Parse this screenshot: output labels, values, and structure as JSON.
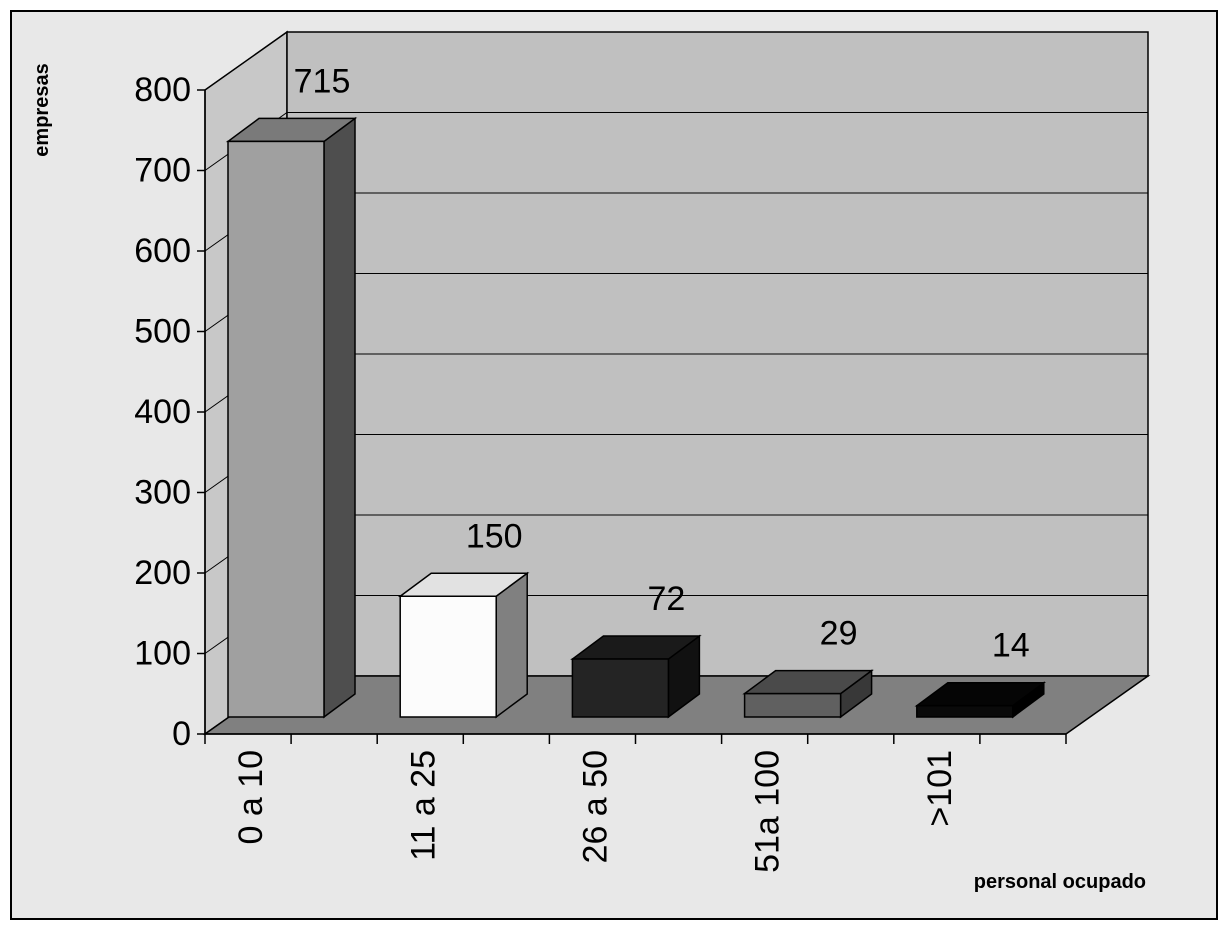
{
  "chart_data": {
    "type": "bar",
    "categories": [
      "0 a 10",
      "11 a 25",
      "26 a 50",
      "51a 100",
      ">101"
    ],
    "values": [
      715,
      150,
      72,
      29,
      14
    ],
    "data_labels": [
      "715",
      "150",
      "72",
      "29",
      "14"
    ],
    "ylabel": "empresas",
    "xlabel": "personal ocupado",
    "ylim": [
      0,
      800
    ],
    "yticks": [
      "0",
      "100",
      "200",
      "300",
      "400",
      "500",
      "600",
      "700",
      "800"
    ],
    "grid": true,
    "colors": {
      "background": "#e8e8e8",
      "back_wall": "#c0c0c0",
      "floor": "#808080",
      "bars": [
        {
          "front": "#a0a0a0",
          "top": "#7a7a7a",
          "side": "#4e4e4e"
        },
        {
          "front": "#fcfcfc",
          "top": "#e2e2e2",
          "side": "#808080"
        },
        {
          "front": "#242424",
          "top": "#1a1a1a",
          "side": "#111111"
        },
        {
          "front": "#606060",
          "top": "#4a4a4a",
          "side": "#383838"
        },
        {
          "front": "#0a0a0a",
          "top": "#050505",
          "side": "#000000"
        }
      ]
    }
  }
}
